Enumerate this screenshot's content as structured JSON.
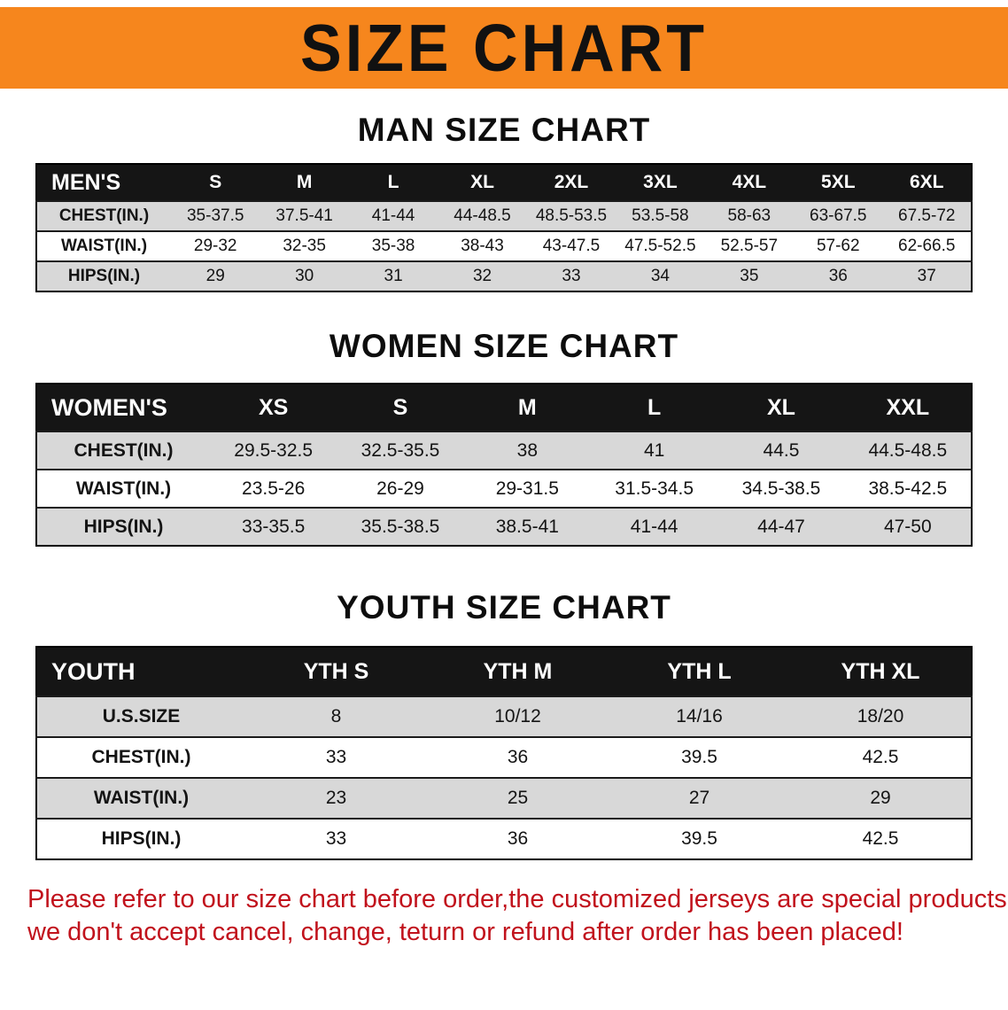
{
  "banner": {
    "title": "SIZE CHART",
    "bg_color": "#F6861D"
  },
  "sections": [
    {
      "heading": "MAN SIZE CHART",
      "table": {
        "header": [
          "MEN'S",
          "S",
          "M",
          "L",
          "XL",
          "2XL",
          "3XL",
          "4XL",
          "5XL",
          "6XL"
        ],
        "rows": [
          [
            "CHEST(IN.)",
            "35-37.5",
            "37.5-41",
            "41-44",
            "44-48.5",
            "48.5-53.5",
            "53.5-58",
            "58-63",
            "63-67.5",
            "67.5-72"
          ],
          [
            "WAIST(IN.)",
            "29-32",
            "32-35",
            "35-38",
            "38-43",
            "43-47.5",
            "47.5-52.5",
            "52.5-57",
            "57-62",
            "62-66.5"
          ],
          [
            "HIPS(IN.)",
            "29",
            "30",
            "31",
            "32",
            "33",
            "34",
            "35",
            "36",
            "37"
          ]
        ]
      }
    },
    {
      "heading": "WOMEN SIZE CHART",
      "table": {
        "header": [
          "WOMEN'S",
          "XS",
          "S",
          "M",
          "L",
          "XL",
          "XXL"
        ],
        "rows": [
          [
            "CHEST(IN.)",
            "29.5-32.5",
            "32.5-35.5",
            "38",
            "41",
            "44.5",
            "44.5-48.5"
          ],
          [
            "WAIST(IN.)",
            "23.5-26",
            "26-29",
            "29-31.5",
            "31.5-34.5",
            "34.5-38.5",
            "38.5-42.5"
          ],
          [
            "HIPS(IN.)",
            "33-35.5",
            "35.5-38.5",
            "38.5-41",
            "41-44",
            "44-47",
            "47-50"
          ]
        ]
      }
    },
    {
      "heading": "YOUTH SIZE CHART",
      "table": {
        "header": [
          "YOUTH",
          "YTH S",
          "YTH M",
          "YTH L",
          "YTH XL"
        ],
        "rows": [
          [
            "U.S.SIZE",
            "8",
            "10/12",
            "14/16",
            "18/20"
          ],
          [
            "CHEST(IN.)",
            "33",
            "36",
            "39.5",
            "42.5"
          ],
          [
            "WAIST(IN.)",
            "23",
            "25",
            "27",
            "29"
          ],
          [
            "HIPS(IN.)",
            "33",
            "36",
            "39.5",
            "42.5"
          ]
        ]
      }
    }
  ],
  "footer": {
    "line1": "Please refer to our size chart before order,the customized jerseys are special products,",
    "line2": "we don't accept cancel, change, teturn or refund after order has been placed!",
    "text_color": "#C1121C"
  }
}
